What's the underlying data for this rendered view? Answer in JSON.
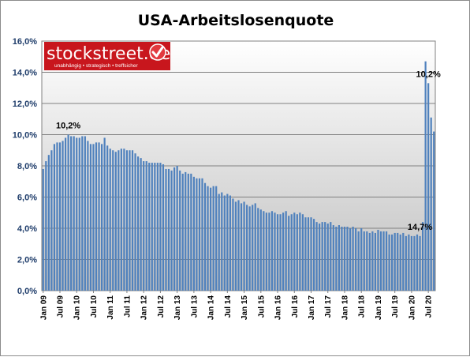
{
  "chart_data": {
    "type": "bar",
    "title": "USA-Arbeitslosenquote",
    "xlabel": "",
    "ylabel": "",
    "ylim": [
      0,
      16
    ],
    "y_tick_labels": [
      "0,0%",
      "2,0%",
      "4,0%",
      "6,0%",
      "8,0%",
      "10,0%",
      "12,0%",
      "14,0%",
      "16,0%"
    ],
    "x_tick_labels": [
      "Jan 09",
      "Jul 09",
      "Jan 10",
      "Jul 10",
      "Jan 11",
      "Jul 11",
      "Jan 12",
      "Jul 12",
      "Jan 13",
      "Jul 13",
      "Jan 14",
      "Jul 14",
      "Jan 15",
      "Jul 15",
      "Jan 16",
      "Jul 16",
      "Jan 17",
      "Jul 17",
      "Jan 18",
      "Jul 18",
      "Jan 19",
      "Jul 19",
      "Jan 20",
      "Jul 20"
    ],
    "grid": true,
    "bar_color": "#4f81bd",
    "plot_gradient": [
      "#ffffff",
      "#bfbfbf"
    ],
    "values": [
      7.8,
      8.3,
      8.7,
      9.0,
      9.4,
      9.5,
      9.5,
      9.6,
      9.8,
      10.0,
      9.9,
      9.9,
      9.8,
      9.8,
      9.9,
      9.9,
      9.6,
      9.4,
      9.4,
      9.5,
      9.5,
      9.4,
      9.8,
      9.3,
      9.1,
      9.0,
      8.9,
      9.0,
      9.1,
      9.1,
      9.0,
      9.0,
      9.0,
      8.8,
      8.6,
      8.5,
      8.3,
      8.3,
      8.2,
      8.2,
      8.2,
      8.2,
      8.2,
      8.1,
      7.8,
      7.8,
      7.7,
      7.9,
      8.0,
      7.7,
      7.5,
      7.6,
      7.5,
      7.5,
      7.3,
      7.2,
      7.2,
      7.2,
      6.9,
      6.7,
      6.6,
      6.7,
      6.7,
      6.2,
      6.3,
      6.1,
      6.2,
      6.1,
      5.9,
      5.7,
      5.8,
      5.6,
      5.7,
      5.5,
      5.4,
      5.5,
      5.6,
      5.3,
      5.2,
      5.1,
      5.0,
      5.0,
      5.1,
      5.0,
      4.9,
      4.9,
      5.0,
      5.1,
      4.8,
      4.9,
      5.0,
      4.9,
      5.0,
      4.9,
      4.7,
      4.7,
      4.7,
      4.6,
      4.4,
      4.3,
      4.4,
      4.4,
      4.3,
      4.4,
      4.2,
      4.1,
      4.2,
      4.1,
      4.1,
      4.1,
      4.0,
      4.1,
      4.0,
      3.8,
      4.0,
      3.8,
      3.8,
      3.7,
      3.8,
      3.7,
      3.9,
      3.8,
      3.8,
      3.8,
      3.6,
      3.6,
      3.7,
      3.7,
      3.6,
      3.7,
      3.5,
      3.6,
      3.5,
      3.5,
      3.6,
      3.5,
      4.4,
      14.7,
      13.3,
      11.1,
      10.2
    ],
    "annotations": [
      {
        "text": "10,2%",
        "index": 9
      },
      {
        "text": "14,7%",
        "index": 135
      },
      {
        "text": "10,2%",
        "index": 138
      }
    ]
  },
  "logo": {
    "name": "stockstreet.de",
    "tagline": "unabhängig • strategisch • treffsicher",
    "bg_color": "#c8161d",
    "icon": "check-icon"
  }
}
